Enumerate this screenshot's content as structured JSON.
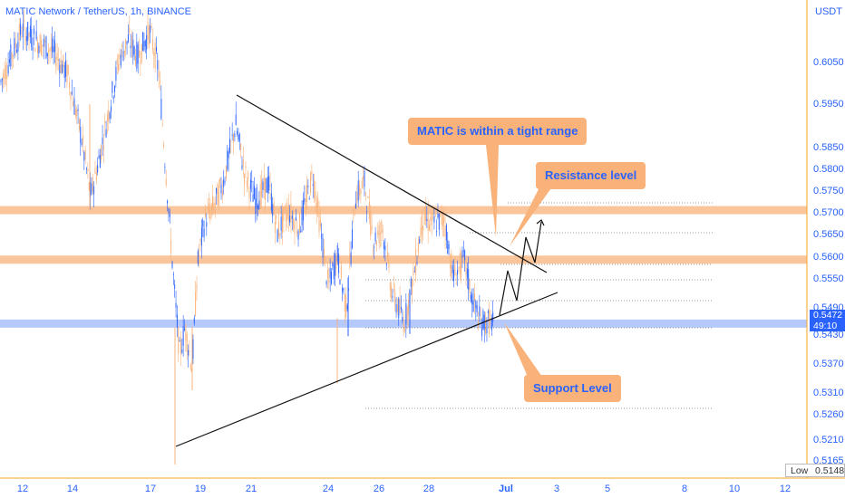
{
  "header": {
    "title": "MATIC Network / TetherUS, 1h, BINANCE",
    "currency": "USDT"
  },
  "colors": {
    "axis_text": "#2962ff",
    "axis_line": "#f5a623",
    "candle_up": "#2962ff",
    "candle_down": "#f8b27a",
    "band_resistance": "#f8b27a",
    "band_support": "#9db7fb",
    "callout_bg": "#f8b27a",
    "callout_text": "#2962ff",
    "trendline": "#111111"
  },
  "annotations": {
    "range_label": "MATIC is within a tight range",
    "resistance_label": "Resistance level",
    "support_label": "Support Level"
  },
  "price_tag": {
    "price": "0.5472",
    "countdown": "49:10"
  },
  "low_box": {
    "label": "Low",
    "value": "0.5148"
  },
  "chart_data": {
    "type": "candlestick",
    "symbol": "MATIC Network / TetherUS",
    "interval": "1h",
    "exchange": "BINANCE",
    "y_unit": "USDT",
    "ylim": [
      0.5135,
      0.6135
    ],
    "y_ticks": [
      "0.6050",
      "0.5950",
      "0.5850",
      "0.5800",
      "0.5750",
      "0.5700",
      "0.5650",
      "0.5600",
      "0.5550",
      "0.5490",
      "0.5430",
      "0.5370",
      "0.5310",
      "0.5260",
      "0.5210",
      "0.5165"
    ],
    "x_ticks": [
      "12",
      "14",
      "17",
      "19",
      "21",
      "24",
      "26",
      "28",
      "Jul",
      "3",
      "5",
      "8",
      "10",
      "12"
    ],
    "resistance_bands": [
      0.572,
      0.561
    ],
    "support_band": 0.5468,
    "series_points": [
      [
        0,
        0.6
      ],
      [
        24,
        0.612
      ],
      [
        60,
        0.607
      ],
      [
        75,
        0.602
      ],
      [
        90,
        0.588
      ],
      [
        100,
        0.575
      ],
      [
        110,
        0.584
      ],
      [
        120,
        0.594
      ],
      [
        132,
        0.606
      ],
      [
        142,
        0.61
      ],
      [
        152,
        0.606
      ],
      [
        165,
        0.612
      ],
      [
        175,
        0.603
      ],
      [
        185,
        0.575
      ],
      [
        192,
        0.555
      ],
      [
        198,
        0.54
      ],
      [
        204,
        0.546
      ],
      [
        212,
        0.537
      ],
      [
        218,
        0.56
      ],
      [
        226,
        0.57
      ],
      [
        236,
        0.573
      ],
      [
        246,
        0.578
      ],
      [
        260,
        0.591
      ],
      [
        270,
        0.58
      ],
      [
        282,
        0.574
      ],
      [
        296,
        0.578
      ],
      [
        306,
        0.567
      ],
      [
        318,
        0.572
      ],
      [
        330,
        0.568
      ],
      [
        345,
        0.58
      ],
      [
        352,
        0.57
      ],
      [
        362,
        0.555
      ],
      [
        372,
        0.562
      ],
      [
        382,
        0.55
      ],
      [
        392,
        0.575
      ],
      [
        402,
        0.578
      ],
      [
        412,
        0.565
      ],
      [
        422,
        0.568
      ],
      [
        432,
        0.554
      ],
      [
        446,
        0.547
      ],
      [
        456,
        0.557
      ],
      [
        466,
        0.57
      ],
      [
        478,
        0.569
      ],
      [
        490,
        0.57
      ],
      [
        500,
        0.557
      ],
      [
        512,
        0.561
      ],
      [
        520,
        0.553
      ],
      [
        530,
        0.547
      ],
      [
        540,
        0.5472
      ]
    ]
  }
}
